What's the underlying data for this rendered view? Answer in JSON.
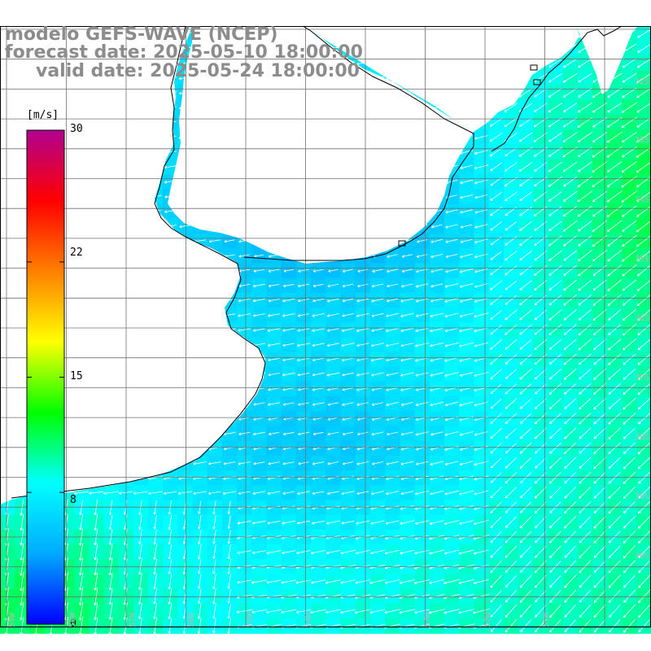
{
  "titles": {
    "line1": "modelo GEFS-WAVE (NCEP)",
    "line2": "forecast date: 2025-05-10 18:00:00",
    "line3": "valid date: 2025-05-24 18:00:00"
  },
  "colorbar": {
    "unit": "[m/s]",
    "ticks": [
      "30",
      "22",
      "15",
      "8",
      "0"
    ],
    "tick_values": [
      30,
      22,
      15,
      8,
      0
    ],
    "min": 0,
    "max": 30,
    "colors": [
      "#0000ff",
      "#00aaff",
      "#00ffff",
      "#00ff00",
      "#ffff00",
      "#ff8000",
      "#ff0000",
      "#b00090"
    ]
  },
  "lat_labels": [
    "32S",
    "33S",
    "34S",
    "35S",
    "36S",
    "37S",
    "38S",
    "39S",
    "40S"
  ],
  "lon_labels": [
    "59W",
    "58W",
    "57W",
    "56W",
    "55W",
    "54W",
    "53W",
    "52W",
    "51W"
  ],
  "colors": {
    "coast": "#000000",
    "grid": "#707070",
    "land": "#ffffff",
    "arrow": "#ffffff",
    "title": "#8c8c8c"
  }
}
